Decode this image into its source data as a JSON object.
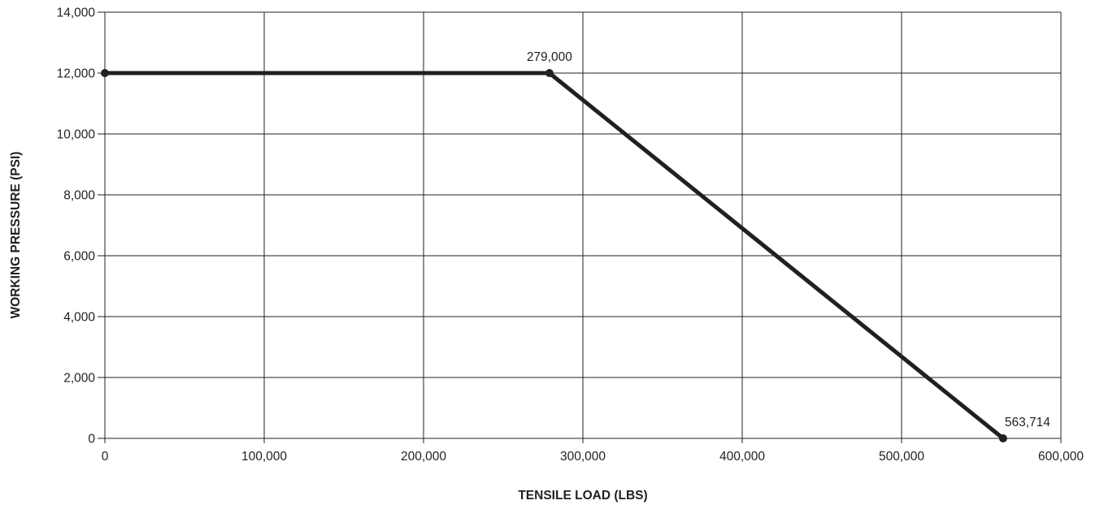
{
  "chart_data": {
    "type": "line",
    "title": "",
    "xlabel": "TENSILE LOAD (LBS)",
    "ylabel": "WORKING PRESSURE (PSI)",
    "xlim": [
      0,
      600000
    ],
    "ylim": [
      0,
      14000
    ],
    "x_ticks": [
      0,
      100000,
      200000,
      300000,
      400000,
      500000,
      600000
    ],
    "x_tick_labels": [
      "0",
      "100,000",
      "200,000",
      "300,000",
      "400,000",
      "500,000",
      "600,000"
    ],
    "y_ticks": [
      0,
      2000,
      4000,
      6000,
      8000,
      10000,
      12000,
      14000
    ],
    "y_tick_labels": [
      "0",
      "2,000",
      "4,000",
      "6,000",
      "8,000",
      "10,000",
      "12,000",
      "14,000"
    ],
    "grid": true,
    "legend": "none",
    "colors": {
      "line": "#231f20",
      "grid": "#231f20",
      "text": "#231f20"
    },
    "series": [
      {
        "x": [
          0,
          279000,
          563714
        ],
        "y": [
          12000,
          12000,
          0
        ]
      }
    ],
    "annotations": [
      {
        "text": "279,000",
        "x": 279000,
        "y": 12000
      },
      {
        "text": "563,714",
        "x": 563714,
        "y": 0
      }
    ]
  }
}
